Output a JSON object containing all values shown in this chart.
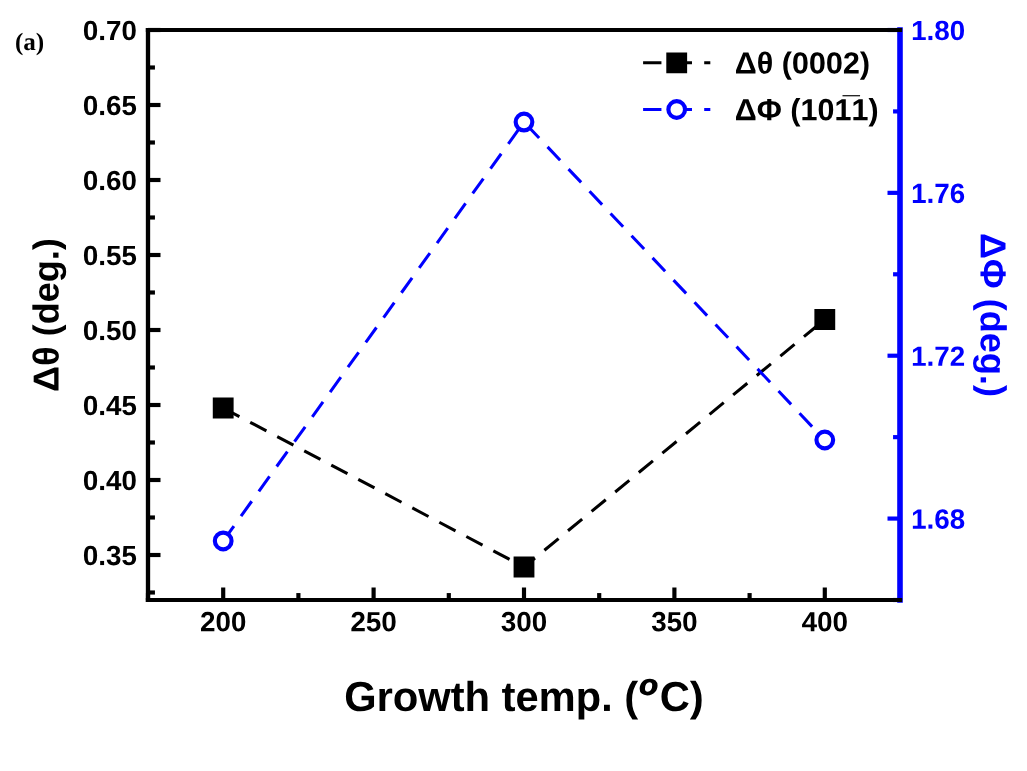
{
  "chart_data": {
    "type": "line",
    "x": [
      200,
      300,
      400
    ],
    "xlabel": "Growth temp. ($^{o}$C)",
    "ylabel": "Δθ (deg.)",
    "y2label": "ΔΦ (deg.)",
    "series": [
      {
        "name": "Δθ (0002)",
        "color": "#000000",
        "values": [
          0.448,
          0.342,
          0.507
        ],
        "marker": "square"
      },
      {
        "name": "ΔΦ (101̅1)",
        "color": "#0000ff",
        "values": [
          1.6745,
          1.7774,
          1.6993
        ],
        "marker": "circle",
        "axis": "y2"
      }
    ],
    "xlim": [
      175,
      425
    ],
    "xticks": [
      200,
      250,
      300,
      350,
      400
    ],
    "ylim": [
      0.32,
      0.7
    ],
    "yticks": [
      0.35,
      {
        "value": 0.4,
        "label": "0.40"
      },
      0.45,
      {
        "value": 0.5,
        "label": "0.50"
      },
      0.55,
      {
        "value": 0.6,
        "label": "0.60"
      },
      0.65,
      {
        "value": 0.7,
        "label": "0.70"
      }
    ],
    "y2lim": [
      1.66,
      1.8
    ],
    "y2ticks": [
      1.68,
      1.72,
      1.76,
      {
        "value": 1.8,
        "label": "1.80"
      }
    ],
    "line_style": "dashed",
    "legend": "top right",
    "grid": false,
    "annotations": [
      "(a)"
    ]
  }
}
